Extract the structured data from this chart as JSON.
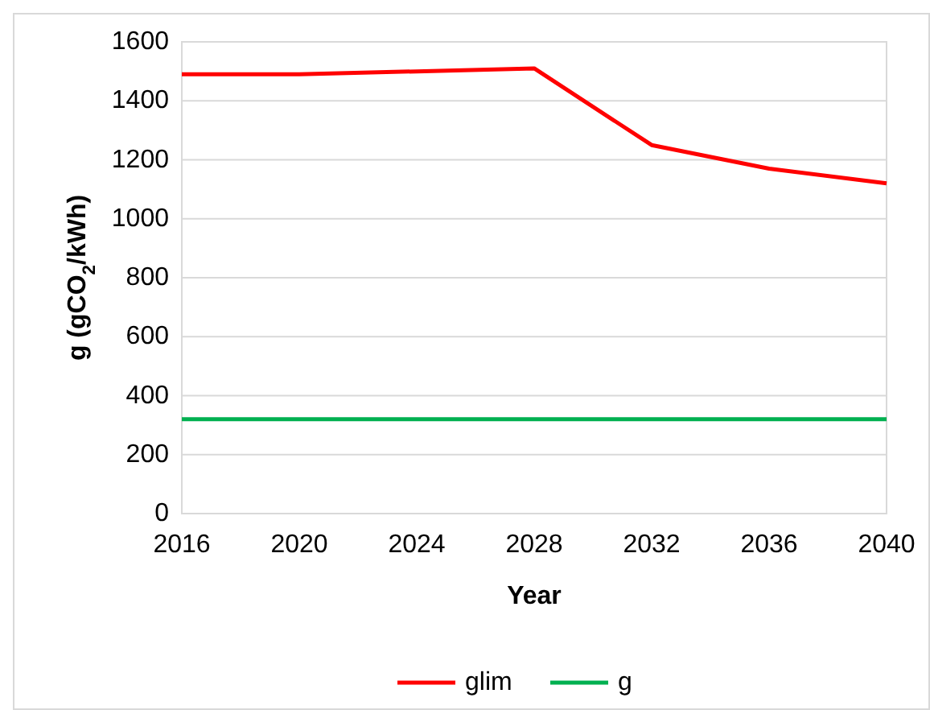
{
  "chart_data": {
    "type": "line",
    "xlabel": "Year",
    "ylabel": "g (gCO$_{2}$/kWh)",
    "x": [
      2016,
      2020,
      2024,
      2028,
      2032,
      2036,
      2040
    ],
    "series": [
      {
        "name": "glim",
        "color": "#ff0000",
        "values": [
          1490,
          1490,
          1500,
          1510,
          1250,
          1170,
          1120
        ]
      },
      {
        "name": "g",
        "color": "#00b050",
        "values": [
          320,
          320,
          320,
          320,
          320,
          320,
          320
        ]
      }
    ],
    "xlim": [
      2016,
      2040
    ],
    "xticks": [
      2016,
      2020,
      2024,
      2028,
      2032,
      2036,
      2040
    ],
    "ylim": [
      0,
      1600
    ],
    "yticks": [
      0,
      200,
      400,
      600,
      800,
      1000,
      1200,
      1400,
      1600
    ],
    "grid": "y",
    "legend": "bottom",
    "marker": "none",
    "line_style": "solid"
  }
}
